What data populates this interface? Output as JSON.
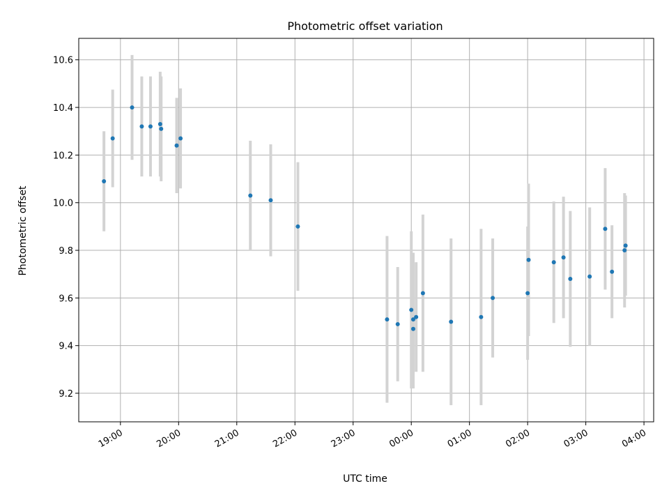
{
  "chart_data": {
    "type": "scatter",
    "title": "Photometric offset variation",
    "xlabel": "UTC time",
    "ylabel": "Photometric offset",
    "grid": true,
    "x_axis": {
      "type": "time",
      "range": [
        "18:17",
        "04:10"
      ],
      "ticks": [
        "19:00",
        "20:00",
        "21:00",
        "22:00",
        "23:00",
        "00:00",
        "01:00",
        "02:00",
        "03:00",
        "04:00"
      ]
    },
    "y_axis": {
      "range": [
        9.08,
        10.69
      ],
      "ticks": [
        "9.2",
        "9.4",
        "9.6",
        "9.8",
        "10.0",
        "10.2",
        "10.4",
        "10.6"
      ]
    },
    "colors": {
      "points": "#1f77b4",
      "errorbars": "#d3d3d3",
      "grid": "#b0b0b0"
    },
    "series": [
      {
        "points": [
          {
            "t": "18:43",
            "y": 10.09,
            "err": 0.21
          },
          {
            "t": "18:52",
            "y": 10.27,
            "err": 0.205
          },
          {
            "t": "19:12",
            "y": 10.4,
            "err": 0.22
          },
          {
            "t": "19:22",
            "y": 10.32,
            "err": 0.21
          },
          {
            "t": "19:31",
            "y": 10.32,
            "err": 0.21
          },
          {
            "t": "19:41",
            "y": 10.33,
            "err": 0.22
          },
          {
            "t": "19:42",
            "y": 10.31,
            "err": 0.22
          },
          {
            "t": "19:58",
            "y": 10.24,
            "err": 0.2
          },
          {
            "t": "20:02",
            "y": 10.27,
            "err": 0.21
          },
          {
            "t": "21:14",
            "y": 10.03,
            "err": 0.23
          },
          {
            "t": "21:35",
            "y": 10.01,
            "err": 0.235
          },
          {
            "t": "22:03",
            "y": 9.9,
            "err": 0.27
          },
          {
            "t": "23:35",
            "y": 9.51,
            "err": 0.35
          },
          {
            "t": "23:46",
            "y": 9.49,
            "err": 0.24
          },
          {
            "t": "00:00",
            "y": 9.55,
            "err": 0.33
          },
          {
            "t": "00:02",
            "y": 9.51,
            "err": 0.28
          },
          {
            "t": "00:02",
            "y": 9.47,
            "err": 0.25
          },
          {
            "t": "00:05",
            "y": 9.52,
            "err": 0.23
          },
          {
            "t": "00:12",
            "y": 9.62,
            "err": 0.33
          },
          {
            "t": "00:41",
            "y": 9.5,
            "err": 0.35
          },
          {
            "t": "01:12",
            "y": 9.52,
            "err": 0.37
          },
          {
            "t": "01:24",
            "y": 9.6,
            "err": 0.25
          },
          {
            "t": "02:00",
            "y": 9.62,
            "err": 0.28
          },
          {
            "t": "02:01",
            "y": 9.76,
            "err": 0.32
          },
          {
            "t": "02:27",
            "y": 9.75,
            "err": 0.255
          },
          {
            "t": "02:37",
            "y": 9.77,
            "err": 0.255
          },
          {
            "t": "02:44",
            "y": 9.68,
            "err": 0.285
          },
          {
            "t": "03:04",
            "y": 9.69,
            "err": 0.29
          },
          {
            "t": "03:20",
            "y": 9.89,
            "err": 0.255
          },
          {
            "t": "03:27",
            "y": 9.71,
            "err": 0.195
          },
          {
            "t": "03:40",
            "y": 9.8,
            "err": 0.24
          },
          {
            "t": "03:41",
            "y": 9.82,
            "err": 0.21
          }
        ]
      }
    ]
  }
}
